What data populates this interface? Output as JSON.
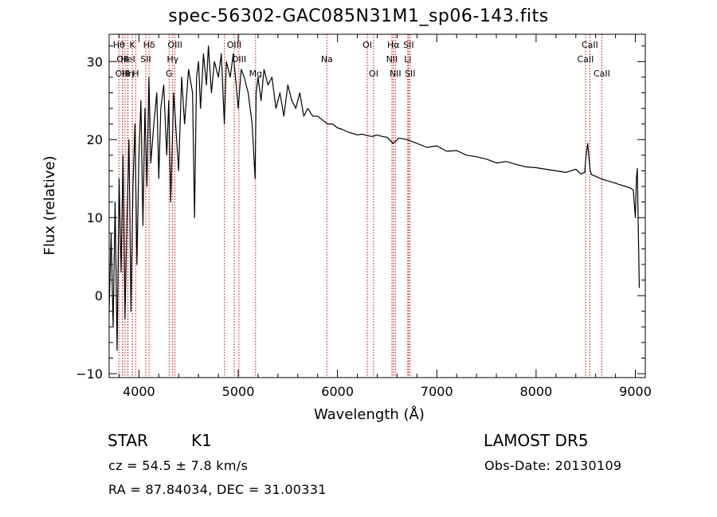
{
  "chart_data": {
    "type": "line",
    "title": "spec-56302-GAC085N31M1_sp06-143.fits",
    "xlabel": "Wavelength (Å)",
    "ylabel": "Flux (relative)",
    "xlim": [
      3700,
      9100
    ],
    "ylim": [
      -10.5,
      33.5
    ],
    "xticks": [
      4000,
      5000,
      6000,
      7000,
      8000,
      9000
    ],
    "yticks": [
      -10,
      0,
      10,
      20,
      30
    ],
    "grid": false,
    "line_color": "#000000",
    "marker_line_color": "#cc0000",
    "series": [
      {
        "x": [
          3700,
          3720,
          3740,
          3760,
          3780,
          3800,
          3820,
          3840,
          3860,
          3880,
          3900,
          3920,
          3940,
          3960,
          3980,
          4000,
          4020,
          4040,
          4060,
          4080,
          4100,
          4120,
          4150,
          4180,
          4200,
          4220,
          4250,
          4280,
          4300,
          4320,
          4350,
          4380,
          4400,
          4430,
          4460,
          4500,
          4540,
          4560,
          4580,
          4600,
          4620,
          4650,
          4680,
          4700,
          4730,
          4760,
          4800,
          4830,
          4860,
          4880,
          4900,
          4920,
          4950,
          4980,
          5000,
          5030,
          5060,
          5100,
          5140,
          5170,
          5180,
          5200,
          5230,
          5260,
          5300,
          5340,
          5380,
          5420,
          5460,
          5500,
          5540,
          5580,
          5620,
          5660,
          5700,
          5750,
          5800,
          5850,
          5900,
          5950,
          6000,
          6050,
          6100,
          6150,
          6200,
          6250,
          6300,
          6350,
          6400,
          6450,
          6500,
          6560,
          6620,
          6700,
          6800,
          6900,
          7000,
          7100,
          7200,
          7300,
          7400,
          7500,
          7600,
          7700,
          7800,
          7900,
          8000,
          8100,
          8200,
          8300,
          8400,
          8450,
          8490,
          8500,
          8520,
          8545,
          8560,
          8600,
          8650,
          8700,
          8750,
          8800,
          8850,
          8900,
          8950,
          8980,
          9000,
          9010,
          9020,
          9030,
          9040
        ],
        "y": [
          -2,
          8,
          -4,
          12,
          -7,
          15,
          3,
          18,
          -3,
          10,
          20,
          -2,
          14,
          22,
          4,
          18,
          25,
          9,
          24,
          14,
          28,
          17,
          22,
          26,
          15,
          24,
          27,
          18,
          25,
          12,
          26,
          20,
          16,
          28,
          22,
          29,
          26,
          10,
          28,
          30,
          24,
          31,
          27,
          32,
          26,
          30,
          28,
          31,
          22,
          30,
          29,
          28,
          31,
          27,
          24,
          29,
          28,
          26,
          22,
          15,
          26,
          28,
          25,
          29,
          27,
          28,
          24,
          26,
          23,
          27,
          25,
          24,
          26,
          23,
          24,
          23,
          23,
          22.5,
          22,
          22,
          21.5,
          21.3,
          21,
          20.8,
          20.6,
          20.7,
          20.5,
          20.4,
          20.6,
          20.4,
          20.3,
          19.5,
          20.2,
          20,
          19.5,
          19,
          19.2,
          18.5,
          18.6,
          18,
          17.8,
          17.5,
          17,
          17.2,
          16.8,
          16.5,
          16.4,
          16.2,
          16,
          15.8,
          16.2,
          15.6,
          15.8,
          17.5,
          19.5,
          16,
          15.5,
          15.3,
          15,
          14.8,
          14.6,
          14.4,
          14.2,
          14,
          13.8,
          13.5,
          10,
          15,
          16.3,
          8,
          1
        ]
      }
    ],
    "line_markers": [
      {
        "wavelength": 3798,
        "label": "Hθ",
        "row": 1
      },
      {
        "wavelength": 3835,
        "label": "OII",
        "row": 2
      },
      {
        "wavelength": 3835,
        "label": "OIII",
        "row": 3
      },
      {
        "wavelength": 3860,
        "label": "",
        "row": 0
      },
      {
        "wavelength": 3889,
        "label": "Hη",
        "row": 3
      },
      {
        "wavelength": 3889,
        "label": "HeI",
        "row": 2
      },
      {
        "wavelength": 3934,
        "label": "K",
        "row": 1
      },
      {
        "wavelength": 3968,
        "label": "H",
        "row": 3
      },
      {
        "wavelength": 4069,
        "label": "SII",
        "row": 2
      },
      {
        "wavelength": 4102,
        "label": "Hδ",
        "row": 1
      },
      {
        "wavelength": 4304,
        "label": "G",
        "row": 3
      },
      {
        "wavelength": 4340,
        "label": "Hγ",
        "row": 2
      },
      {
        "wavelength": 4363,
        "label": "OIII",
        "row": 1
      },
      {
        "wavelength": 4861,
        "label": "",
        "row": 0
      },
      {
        "wavelength": 4959,
        "label": "OIII",
        "row": 1
      },
      {
        "wavelength": 5007,
        "label": "OIII",
        "row": 2
      },
      {
        "wavelength": 5175,
        "label": "Mg",
        "row": 3
      },
      {
        "wavelength": 5893,
        "label": "Na",
        "row": 2
      },
      {
        "wavelength": 6300,
        "label": "OI",
        "row": 1
      },
      {
        "wavelength": 6364,
        "label": "OI",
        "row": 3
      },
      {
        "wavelength": 6548,
        "label": "NII",
        "row": 2
      },
      {
        "wavelength": 6563,
        "label": "Hα",
        "row": 1
      },
      {
        "wavelength": 6583,
        "label": "NII",
        "row": 3
      },
      {
        "wavelength": 6708,
        "label": "Li",
        "row": 2
      },
      {
        "wavelength": 6716,
        "label": "SII",
        "row": 1
      },
      {
        "wavelength": 6731,
        "label": "SII",
        "row": 3
      },
      {
        "wavelength": 8498,
        "label": "CaII",
        "row": 2
      },
      {
        "wavelength": 8542,
        "label": "CaII",
        "row": 1
      },
      {
        "wavelength": 8662,
        "label": "CaII",
        "row": 3
      }
    ]
  },
  "info": {
    "object_class": "STAR",
    "subclass": "K1",
    "survey": "LAMOST DR5",
    "cz": "cz = 54.5 ± 7.8 km/s",
    "obs_date": "Obs-Date: 20130109",
    "coords": "RA =  87.84034, DEC =  31.00331"
  }
}
